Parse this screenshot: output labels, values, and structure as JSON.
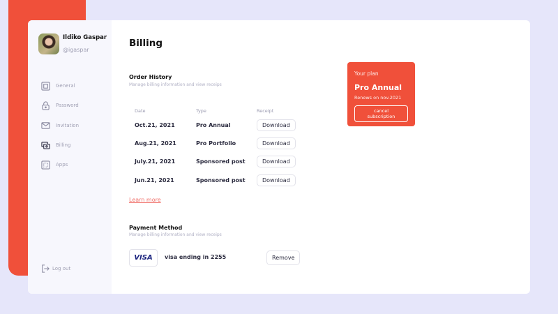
{
  "colors": {
    "accent": "#f0503a",
    "background": "#e6e6fa",
    "sidebar": "#f7f7fd"
  },
  "profile": {
    "name": "Ildiko Gaspar",
    "handle": "@igaspar"
  },
  "sidebar": {
    "items": [
      {
        "label": "General",
        "icon": "square-icon"
      },
      {
        "label": "Password",
        "icon": "lock-icon"
      },
      {
        "label": "Invitation",
        "icon": "mail-icon"
      },
      {
        "label": "Billing",
        "icon": "billing-icon",
        "active": true
      },
      {
        "label": "Apps",
        "icon": "apps-icon"
      }
    ],
    "logout": "Log out"
  },
  "main": {
    "title": "Billing",
    "order_history": {
      "title": "Order History",
      "subtitle": "Manage billing information and view receips",
      "columns": [
        "Date",
        "Type",
        "Receipt"
      ],
      "rows": [
        {
          "date": "Oct.21, 2021",
          "type": "Pro Annual",
          "action": "Download"
        },
        {
          "date": "Aug.21, 2021",
          "type": "Pro Portfolio",
          "action": "Download"
        },
        {
          "date": "July.21, 2021",
          "type": "Sponsored post",
          "action": "Download"
        },
        {
          "date": "Jun.21, 2021",
          "type": "Sponsored post",
          "action": "Download"
        }
      ],
      "learn_more": "Learn more"
    },
    "payment": {
      "title": "Payment Method",
      "subtitle": "Manage billing information and view receips",
      "card_brand": "VISA",
      "card_text": "visa ending in 2255",
      "remove": "Remove"
    },
    "plan": {
      "label": "Your plan",
      "name": "Pro Annual",
      "renews": "Renews on nov.2021",
      "cancel": "cancel subscription"
    }
  }
}
